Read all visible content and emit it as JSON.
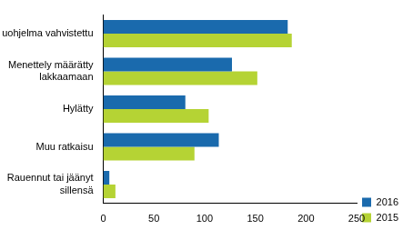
{
  "chart_data": {
    "type": "bar",
    "orientation": "horizontal",
    "categories": [
      "Maksuohjelma vahvistettu",
      "Menettely määrätty lakkaamaan",
      "Hylätty",
      "Muu ratkaisu",
      "Rauennut tai jäänyt sillensä"
    ],
    "series": [
      {
        "name": "2016",
        "color": "#1a6aad",
        "values": [
          182,
          127,
          81,
          114,
          6
        ]
      },
      {
        "name": "2015",
        "color": "#b5d334",
        "values": [
          186,
          152,
          104,
          90,
          12
        ]
      }
    ],
    "xlim": [
      0,
      250
    ],
    "xticks": [
      0,
      50,
      100,
      150,
      200,
      250
    ],
    "grid": false,
    "legend": "bottom-right"
  }
}
